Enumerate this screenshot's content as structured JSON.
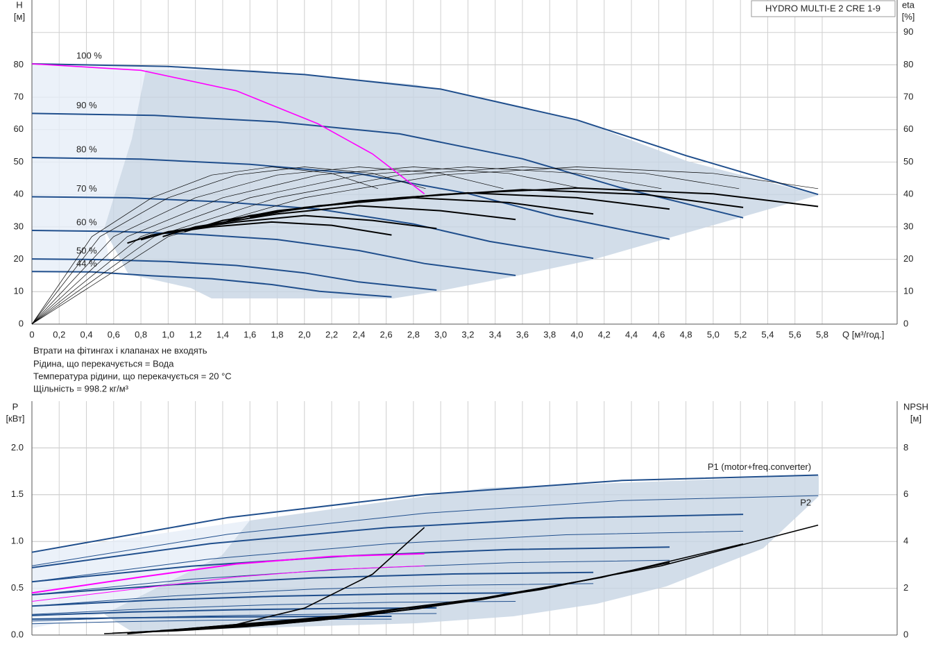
{
  "chart_data": [
    {
      "type": "line",
      "title": "HYDRO MULTI-E 2 CRE 1-9",
      "x_label": "Q [м³/год.]",
      "y_label": "H",
      "y_unit": "[м]",
      "y2_label": "eta",
      "y2_unit": "[%]",
      "notes": [
        "Втрати на фітингах і клапанах не входять",
        "Рідина, що перекачується = Вода",
        "Температура рідини, що перекачується = 20 °C",
        "Щільність = 998.2 кг/м³"
      ],
      "grid": true,
      "xlim": [
        0,
        6.35
      ],
      "xticks": [
        0,
        {
          "value": 0.2,
          "label": "0,2"
        },
        {
          "value": 0.4,
          "label": "0,4"
        },
        {
          "value": 0.6,
          "label": "0,6"
        },
        {
          "value": 0.8,
          "label": "0,8"
        },
        {
          "value": 1.0,
          "label": "1,0"
        },
        {
          "value": 1.2,
          "label": "1,2"
        },
        {
          "value": 1.4,
          "label": "1,4"
        },
        {
          "value": 1.6,
          "label": "1,6"
        },
        {
          "value": 1.8,
          "label": "1,8"
        },
        {
          "value": 2.0,
          "label": "2,0"
        },
        {
          "value": 2.2,
          "label": "2,2"
        },
        {
          "value": 2.4,
          "label": "2,4"
        },
        {
          "value": 2.6,
          "label": "2,6"
        },
        {
          "value": 2.8,
          "label": "2,8"
        },
        {
          "value": 3.0,
          "label": "3,0"
        },
        {
          "value": 3.2,
          "label": "3,2"
        },
        {
          "value": 3.4,
          "label": "3,4"
        },
        {
          "value": 3.6,
          "label": "3,6"
        },
        {
          "value": 3.8,
          "label": "3,8"
        },
        {
          "value": 4.0,
          "label": "4,0"
        },
        {
          "value": 4.2,
          "label": "4,2"
        },
        {
          "value": 4.4,
          "label": "4,4"
        },
        {
          "value": 4.6,
          "label": "4,6"
        },
        {
          "value": 4.8,
          "label": "4,8"
        },
        {
          "value": 5.0,
          "label": "5,0"
        },
        {
          "value": 5.2,
          "label": "5,2"
        },
        {
          "value": 5.4,
          "label": "5,4"
        },
        {
          "value": 5.6,
          "label": "5,6"
        },
        {
          "value": 5.8,
          "label": "5,8"
        }
      ],
      "ylim": [
        0,
        100
      ],
      "yticks": [
        0,
        10,
        20,
        30,
        40,
        50,
        60,
        70,
        80
      ],
      "y2lim": [
        0,
        100
      ],
      "y2ticks": [
        0,
        10,
        20,
        30,
        40,
        50,
        60,
        70,
        80,
        90
      ],
      "series": [
        {
          "name": "100 %",
          "color": "#1f4e8c",
          "width": 2,
          "x": [
            0,
            1,
            2,
            3,
            4,
            4.8,
            5.77
          ],
          "values": [
            80.3,
            79.5,
            77,
            72.5,
            63,
            52,
            40
          ]
        },
        {
          "name": "90 %",
          "color": "#1f4e8c",
          "width": 2,
          "x": [
            0,
            0.9,
            1.8,
            2.7,
            3.6,
            4.32,
            5.22
          ],
          "values": [
            65,
            64.4,
            62.4,
            58.7,
            51,
            42.1,
            32.8
          ]
        },
        {
          "name": "80 %",
          "color": "#1f4e8c",
          "width": 2,
          "x": [
            0,
            0.8,
            1.6,
            2.4,
            3.2,
            3.84,
            4.68
          ],
          "values": [
            51.4,
            50.9,
            49.3,
            46.4,
            40.3,
            33.3,
            26.2
          ]
        },
        {
          "name": "70 %",
          "color": "#1f4e8c",
          "width": 2,
          "x": [
            0,
            0.7,
            1.4,
            2.1,
            2.8,
            3.36,
            4.12
          ],
          "values": [
            39.3,
            39,
            37.7,
            35.5,
            30.9,
            25.5,
            20.3
          ]
        },
        {
          "name": "60 %",
          "color": "#1f4e8c",
          "width": 2,
          "x": [
            0,
            0.6,
            1.2,
            1.8,
            2.4,
            2.88,
            3.55
          ],
          "values": [
            28.9,
            28.6,
            27.7,
            26.1,
            22.7,
            18.7,
            15
          ]
        },
        {
          "name": "50 %",
          "color": "#1f4e8c",
          "width": 2,
          "x": [
            0,
            0.5,
            1,
            1.5,
            2,
            2.4,
            2.97
          ],
          "values": [
            20.1,
            19.9,
            19.3,
            18.1,
            15.8,
            13,
            10.5
          ]
        },
        {
          "name": "44 %",
          "color": "#1f4e8c",
          "width": 2,
          "x": [
            0,
            0.44,
            0.88,
            1.32,
            1.76,
            2.11,
            2.64
          ],
          "values": [
            16.2,
            16.1,
            14.9,
            14,
            12.2,
            10.1,
            8.4
          ]
        },
        {
          "color": "#000000",
          "width": 0.7,
          "axis": "y2",
          "x": [
            0,
            1,
            2,
            3,
            4,
            5,
            5.77
          ],
          "values": [
            0,
            27,
            39,
            46,
            48.5,
            46.5,
            41.8
          ]
        },
        {
          "color": "#000000",
          "width": 0.7,
          "axis": "y2",
          "x": [
            0,
            0.9,
            1.8,
            2.7,
            3.6,
            4.5,
            5.19
          ],
          "values": [
            0,
            27,
            39,
            46,
            48.5,
            46.5,
            41.8
          ]
        },
        {
          "color": "#000000",
          "width": 0.7,
          "axis": "y2",
          "x": [
            0,
            0.8,
            1.6,
            2.4,
            3.2,
            4,
            4.62
          ],
          "values": [
            0,
            27,
            39,
            46,
            48.5,
            46.5,
            41.8
          ]
        },
        {
          "color": "#000000",
          "width": 0.7,
          "axis": "y2",
          "x": [
            0,
            0.7,
            1.4,
            2.1,
            2.8,
            3.5,
            4.04
          ],
          "values": [
            0,
            27,
            39,
            46,
            48.5,
            46.5,
            41.8
          ]
        },
        {
          "color": "#000000",
          "width": 0.7,
          "axis": "y2",
          "x": [
            0,
            0.6,
            1.2,
            1.8,
            2.4,
            3,
            3.46
          ],
          "values": [
            0,
            27,
            39,
            46,
            48.5,
            46.5,
            41.8
          ]
        },
        {
          "color": "#000000",
          "width": 0.7,
          "axis": "y2",
          "x": [
            0,
            0.5,
            1,
            1.5,
            2,
            2.5,
            2.89
          ],
          "values": [
            0,
            27,
            39,
            46,
            48.5,
            46.5,
            41.8
          ]
        },
        {
          "color": "#000000",
          "width": 0.7,
          "axis": "y2",
          "x": [
            0,
            0.44,
            0.88,
            1.32,
            1.76,
            2.2,
            2.54
          ],
          "values": [
            0,
            27,
            39,
            46,
            48.5,
            46.5,
            41.8
          ]
        },
        {
          "color": "#000000",
          "width": 2,
          "axis": "y2",
          "x": [
            1.6,
            2,
            3,
            4,
            5,
            5.77
          ],
          "values": [
            33,
            36,
            40,
            42,
            40.2,
            36.3
          ]
        },
        {
          "color": "#000000",
          "width": 2,
          "axis": "y2",
          "x": [
            1.44,
            1.8,
            2.7,
            3.6,
            4.5,
            5.22
          ],
          "values": [
            32,
            35,
            39,
            41.5,
            40,
            36
          ]
        },
        {
          "color": "#000000",
          "width": 2,
          "axis": "y2",
          "x": [
            1.28,
            1.6,
            2.4,
            3.2,
            4,
            4.68
          ],
          "values": [
            30,
            33.5,
            38,
            40.5,
            39,
            35.5
          ]
        },
        {
          "color": "#000000",
          "width": 2,
          "axis": "y2",
          "x": [
            1.12,
            1.4,
            2.1,
            2.8,
            3.5,
            4.12
          ],
          "values": [
            28.5,
            32,
            36.5,
            39,
            37.5,
            34
          ]
        },
        {
          "color": "#000000",
          "width": 2,
          "axis": "y2",
          "x": [
            0.96,
            1.2,
            1.8,
            2.4,
            3,
            3.55
          ],
          "values": [
            27,
            30,
            34,
            36.5,
            35,
            32.3
          ]
        },
        {
          "color": "#000000",
          "width": 2,
          "axis": "y2",
          "x": [
            0.8,
            1,
            1.5,
            2,
            2.5,
            2.97
          ],
          "values": [
            26,
            28.5,
            31.5,
            33.5,
            32,
            29.5
          ]
        },
        {
          "color": "#000000",
          "width": 2,
          "axis": "y2",
          "x": [
            0.7,
            0.88,
            1.32,
            1.76,
            2.2,
            2.64
          ],
          "values": [
            25,
            27.5,
            30,
            31.5,
            30.5,
            27.5
          ]
        },
        {
          "color": "#ff00ff",
          "width": 1.6,
          "x": [
            0,
            0.8,
            1.5,
            2.1,
            2.5,
            2.88
          ],
          "values": [
            80.3,
            78.3,
            72,
            61.8,
            52.5,
            40.2
          ]
        }
      ]
    },
    {
      "type": "line",
      "y_label": "P",
      "y_unit": "[кВт]",
      "y2_label": "NPSH",
      "y2_unit": "[м]",
      "grid": true,
      "ylim": [
        0,
        2.5
      ],
      "yticks": [
        {
          "value": 0,
          "label": "0.0"
        },
        0.5,
        {
          "value": 1,
          "label": "1.0"
        },
        1.5,
        {
          "value": 2,
          "label": "2.0"
        }
      ],
      "y2lim": [
        0,
        10
      ],
      "y2ticks": [
        0,
        2,
        4,
        6,
        8
      ],
      "series": [
        {
          "name": "P1 (motor+freq.converter)",
          "color": "#1f4e8c",
          "width": 2,
          "x": [
            0,
            1.44,
            2.89,
            4.33,
            5.77
          ],
          "values": [
            0.885,
            1.256,
            1.504,
            1.652,
            1.71
          ]
        },
        {
          "name": "P2",
          "color": "#1f4e8c",
          "width": 1,
          "x": [
            0,
            1.44,
            2.89,
            4.33,
            5.77
          ],
          "values": [
            0.74,
            1.078,
            1.303,
            1.438,
            1.49
          ]
        },
        {
          "color": "#1f4e8c",
          "width": 2,
          "x": [
            0,
            1.31,
            2.61,
            3.92,
            5.22
          ],
          "values": [
            0.72,
            0.977,
            1.148,
            1.25,
            1.29
          ]
        },
        {
          "color": "#1f4e8c",
          "width": 1,
          "x": [
            0,
            1.31,
            2.61,
            3.92,
            5.22
          ],
          "values": [
            0.57,
            0.813,
            0.975,
            1.072,
            1.11
          ]
        },
        {
          "color": "#1f4e8c",
          "width": 2,
          "x": [
            0,
            1.17,
            2.34,
            3.51,
            4.68
          ],
          "values": [
            0.57,
            0.737,
            0.848,
            0.914,
            0.94
          ]
        },
        {
          "color": "#1f4e8c",
          "width": 1,
          "x": [
            0,
            1.17,
            2.34,
            3.51,
            4.68
          ],
          "values": [
            0.43,
            0.597,
            0.708,
            0.774,
            0.8
          ]
        },
        {
          "color": "#1f4e8c",
          "width": 2,
          "x": [
            0,
            1.03,
            2.06,
            3.09,
            4.12
          ],
          "values": [
            0.43,
            0.538,
            0.61,
            0.653,
            0.67
          ]
        },
        {
          "color": "#1f4e8c",
          "width": 1,
          "x": [
            0,
            1.03,
            2.06,
            3.09,
            4.12
          ],
          "values": [
            0.31,
            0.418,
            0.49,
            0.533,
            0.55
          ]
        },
        {
          "color": "#1f4e8c",
          "width": 2,
          "x": [
            0,
            0.89,
            1.78,
            2.66,
            3.55
          ],
          "values": [
            0.31,
            0.373,
            0.415,
            0.44,
            0.45
          ]
        },
        {
          "color": "#1f4e8c",
          "width": 1,
          "x": [
            0,
            0.89,
            1.78,
            2.66,
            3.55
          ],
          "values": [
            0.22,
            0.283,
            0.325,
            0.35,
            0.36
          ]
        },
        {
          "color": "#1f4e8c",
          "width": 2,
          "x": [
            0,
            0.74,
            1.49,
            2.23,
            2.97
          ],
          "values": [
            0.21,
            0.246,
            0.27,
            0.284,
            0.29
          ]
        },
        {
          "color": "#1f4e8c",
          "width": 1,
          "x": [
            0,
            0.74,
            1.49,
            2.23,
            2.97
          ],
          "values": [
            0.15,
            0.186,
            0.21,
            0.224,
            0.23
          ]
        },
        {
          "color": "#1f4e8c",
          "width": 2,
          "x": [
            0,
            0.66,
            1.32,
            1.98,
            2.64
          ],
          "values": [
            0.17,
            0.184,
            0.193,
            0.198,
            0.2
          ]
        },
        {
          "color": "#1f4e8c",
          "width": 1,
          "x": [
            0,
            0.66,
            1.32,
            1.98,
            2.64
          ],
          "values": [
            0.12,
            0.143,
            0.158,
            0.167,
            0.17
          ]
        },
        {
          "color": "#ff00ff",
          "width": 2,
          "x": [
            0,
            0.8,
            1.5,
            2.2,
            2.88
          ],
          "values": [
            0.45,
            0.62,
            0.76,
            0.84,
            0.87
          ]
        },
        {
          "color": "#ff00ff",
          "width": 1,
          "x": [
            0,
            0.8,
            1.5,
            2.2,
            2.88
          ],
          "values": [
            0.36,
            0.5,
            0.62,
            0.7,
            0.74
          ]
        },
        {
          "color": "#000000",
          "width": 1.6,
          "axis": "y2",
          "x": [
            1.15,
            2.31,
            3.46,
            4.62,
            5.77
          ],
          "values": [
            0.28,
            0.85,
            1.69,
            2.96,
            4.7
          ]
        },
        {
          "color": "#000000",
          "width": 1.6,
          "axis": "y2",
          "x": [
            1.04,
            2.09,
            3.13,
            4.18,
            5.22
          ],
          "values": [
            0.23,
            0.7,
            1.4,
            2.46,
            3.9
          ]
        },
        {
          "color": "#000000",
          "width": 1.6,
          "axis": "y2",
          "x": [
            0.94,
            1.87,
            2.81,
            3.74,
            4.68
          ],
          "values": [
            0.19,
            0.56,
            1.12,
            1.95,
            3.1
          ]
        },
        {
          "color": "#000000",
          "width": 1.6,
          "axis": "y2",
          "x": [
            0.82,
            1.65,
            2.47,
            3.3,
            4.12
          ],
          "values": [
            0.14,
            0.43,
            0.86,
            1.51,
            2.4
          ]
        },
        {
          "color": "#000000",
          "width": 1.6,
          "axis": "y2",
          "x": [
            0.71,
            1.42,
            2.13,
            2.84,
            3.55
          ],
          "values": [
            0.11,
            0.32,
            0.65,
            1.13,
            1.8
          ]
        },
        {
          "color": "#000000",
          "width": 1.6,
          "axis": "y2",
          "x": [
            0.59,
            1.19,
            1.78,
            2.38,
            2.97
          ],
          "values": [
            0.08,
            0.23,
            0.45,
            0.79,
            1.25
          ]
        },
        {
          "color": "#000000",
          "width": 1.6,
          "axis": "y2",
          "x": [
            0.53,
            1.06,
            1.58,
            2.11,
            2.64
          ],
          "values": [
            0.06,
            0.18,
            0.36,
            0.63,
            1.0
          ]
        },
        {
          "color": "#000000",
          "width": 1.6,
          "axis": "y2",
          "x": [
            0.7,
            1.5,
            2,
            2.5,
            2.88
          ],
          "values": [
            0.05,
            0.45,
            1.15,
            2.6,
            4.6
          ]
        }
      ]
    }
  ]
}
